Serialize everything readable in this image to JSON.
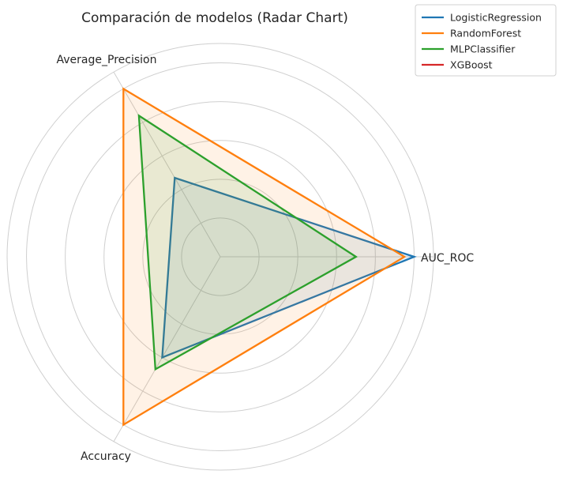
{
  "chart_data": {
    "type": "radar",
    "title": "Comparación de modelos (Radar Chart)",
    "axes": [
      "AUC_ROC",
      "Average_Precision",
      "Accuracy"
    ],
    "rlim": [
      0,
      1.1
    ],
    "grid": true,
    "legend_position": "top-right",
    "series": [
      {
        "name": "LogisticRegression",
        "color": "#1f77b4",
        "values": [
          1.0,
          0.47,
          0.6
        ]
      },
      {
        "name": "RandomForest",
        "color": "#ff7f0e",
        "values": [
          0.95,
          1.0,
          1.0
        ]
      },
      {
        "name": "MLPClassifier",
        "color": "#2ca02c",
        "values": [
          0.7,
          0.84,
          0.67
        ]
      },
      {
        "name": "XGBoost",
        "color": "#d62728",
        "values": [
          0,
          0,
          0
        ]
      }
    ]
  }
}
